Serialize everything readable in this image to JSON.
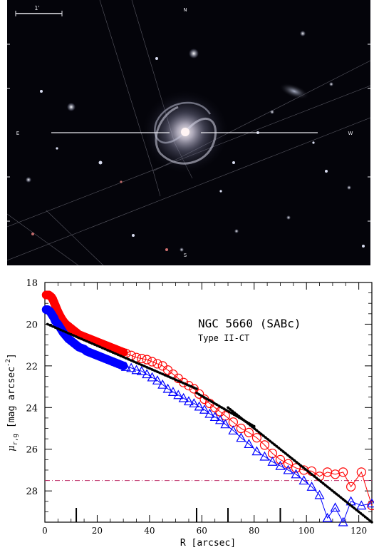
{
  "sky_image": {
    "scale_bar_label": "1'",
    "compass_n": "N",
    "compass_e": "E",
    "compass_w": "W",
    "compass_s": "S"
  },
  "chart_data": {
    "type": "scatter",
    "title": "NGC 5660 (SABc)",
    "subtitle": "Type II-CT",
    "xlabel": "R [arcsec]",
    "ylabel": "μ r,g [mag arcsec^-2]",
    "ylabel_parts": {
      "mu": "μ",
      "sub": "r,g",
      "unit": "[mag arcsec",
      "exp": "-2",
      "close": "]"
    },
    "xlim": [
      0,
      125
    ],
    "ylim": [
      29.5,
      18
    ],
    "y_inverted": true,
    "xticks": [
      0,
      20,
      40,
      60,
      80,
      100,
      120
    ],
    "yticks": [
      18,
      20,
      22,
      24,
      26,
      28
    ],
    "grid": false,
    "colors": {
      "r_band": "#ff0000",
      "g_band": "#0000ff",
      "fit": "#000000",
      "limit": "#c0306a"
    },
    "break_markers_x": [
      12,
      58,
      70,
      90
    ],
    "sky_limit": 27.5,
    "series": [
      {
        "name": "r",
        "dense": {
          "x": [
            0.5,
            1,
            1.5,
            2,
            2.5,
            3,
            3.5,
            4,
            5,
            6,
            7,
            8,
            9,
            10,
            11,
            12,
            13,
            14,
            15,
            16,
            17,
            18,
            19,
            20,
            21,
            22,
            23,
            24,
            25,
            26,
            27,
            28,
            29,
            30
          ],
          "y": [
            18.6,
            18.6,
            18.6,
            18.65,
            18.7,
            18.8,
            18.95,
            19.1,
            19.4,
            19.65,
            19.85,
            20.0,
            20.1,
            20.2,
            20.3,
            20.4,
            20.5,
            20.55,
            20.6,
            20.65,
            20.7,
            20.75,
            20.8,
            20.85,
            20.9,
            20.95,
            21.0,
            21.05,
            21.1,
            21.15,
            21.2,
            21.25,
            21.3,
            21.35
          ]
        },
        "points": {
          "x": [
            31,
            33,
            35,
            37,
            39,
            41,
            43,
            45,
            47,
            49,
            51,
            53,
            55,
            57,
            59,
            61,
            63,
            65,
            67,
            69,
            72,
            75,
            78,
            81,
            84,
            87,
            90,
            93,
            96,
            99,
            102,
            105,
            108,
            111,
            114,
            117,
            121,
            125
          ],
          "y": [
            21.4,
            21.5,
            21.6,
            21.65,
            21.7,
            21.8,
            21.9,
            22.0,
            22.2,
            22.4,
            22.6,
            22.8,
            22.95,
            23.1,
            23.35,
            23.6,
            23.8,
            24.0,
            24.2,
            24.4,
            24.7,
            25.0,
            25.2,
            25.45,
            25.8,
            26.2,
            26.5,
            26.7,
            26.9,
            27.0,
            27.05,
            27.3,
            27.1,
            27.2,
            27.1,
            27.8,
            27.1,
            28.7
          ]
        }
      },
      {
        "name": "g",
        "dense": {
          "x": [
            0.5,
            1,
            1.5,
            2,
            2.5,
            3,
            3.5,
            4,
            5,
            6,
            7,
            8,
            9,
            10,
            11,
            12,
            13,
            14,
            15,
            16,
            17,
            18,
            19,
            20,
            21,
            22,
            23,
            24,
            25,
            26,
            27,
            28,
            29,
            30
          ],
          "y": [
            19.3,
            19.3,
            19.35,
            19.4,
            19.5,
            19.6,
            19.7,
            19.85,
            20.0,
            20.2,
            20.4,
            20.55,
            20.7,
            20.8,
            20.9,
            21.0,
            21.1,
            21.15,
            21.2,
            21.3,
            21.35,
            21.4,
            21.45,
            21.5,
            21.55,
            21.6,
            21.65,
            21.7,
            21.75,
            21.8,
            21.85,
            21.9,
            21.95,
            22.0
          ]
        },
        "points": {
          "x": [
            31,
            33,
            35,
            37,
            39,
            41,
            43,
            45,
            47,
            49,
            51,
            53,
            55,
            57,
            59,
            61,
            63,
            65,
            67,
            69,
            72,
            75,
            78,
            81,
            84,
            87,
            90,
            93,
            96,
            99,
            102,
            105,
            108,
            111,
            114,
            117,
            121,
            125
          ],
          "y": [
            22.05,
            22.1,
            22.2,
            22.25,
            22.4,
            22.55,
            22.7,
            22.9,
            23.1,
            23.25,
            23.4,
            23.55,
            23.7,
            23.8,
            23.95,
            24.1,
            24.3,
            24.45,
            24.6,
            24.8,
            25.1,
            25.45,
            25.75,
            26.1,
            26.35,
            26.6,
            26.8,
            27.0,
            27.2,
            27.5,
            27.8,
            28.2,
            29.3,
            28.8,
            29.5,
            28.5,
            28.7,
            28.6
          ]
        }
      }
    ],
    "fits": [
      {
        "x": [
          1,
          58
        ],
        "y": [
          20.0,
          23.1
        ]
      },
      {
        "x": [
          58,
          80
        ],
        "y": [
          23.3,
          24.9
        ]
      },
      {
        "x": [
          70,
          125
        ],
        "y": [
          24.0,
          29.5
        ]
      }
    ]
  }
}
